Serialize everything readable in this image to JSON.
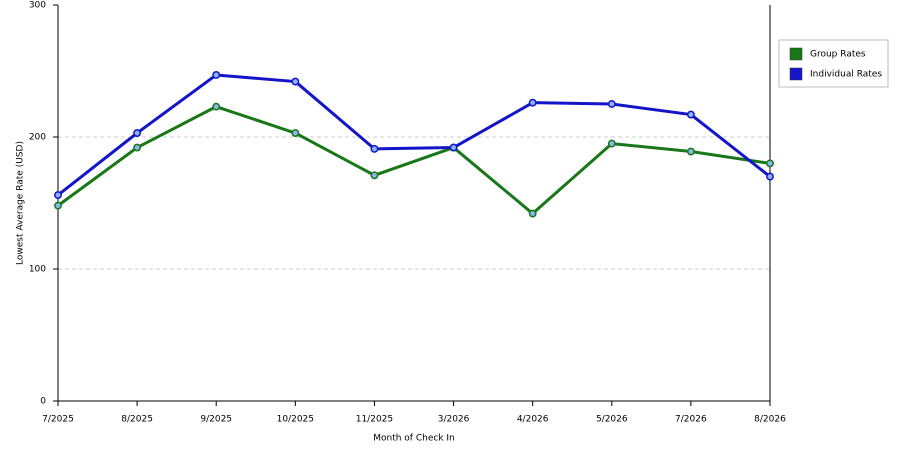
{
  "chart_data": {
    "type": "line",
    "x_label": "Month of Check In",
    "y_label": "Lowest Average Rate (USD)",
    "categories": [
      "7/2025",
      "8/2025",
      "9/2025",
      "10/2025",
      "11/2025",
      "3/2026",
      "4/2026",
      "5/2026",
      "7/2026",
      "8/2026"
    ],
    "series": [
      {
        "name": "Group Rates",
        "color": "#187818",
        "values": [
          148,
          192,
          223,
          203,
          171,
          192,
          142,
          195,
          189,
          180
        ]
      },
      {
        "name": "Individual Rates",
        "color": "#1414c8",
        "values": [
          156,
          203,
          247,
          242,
          191,
          192,
          226,
          225,
          217,
          170
        ]
      }
    ],
    "ylim": [
      0,
      300
    ],
    "yticks": [
      0,
      100,
      200,
      300
    ],
    "grid": true,
    "legend": "right"
  }
}
